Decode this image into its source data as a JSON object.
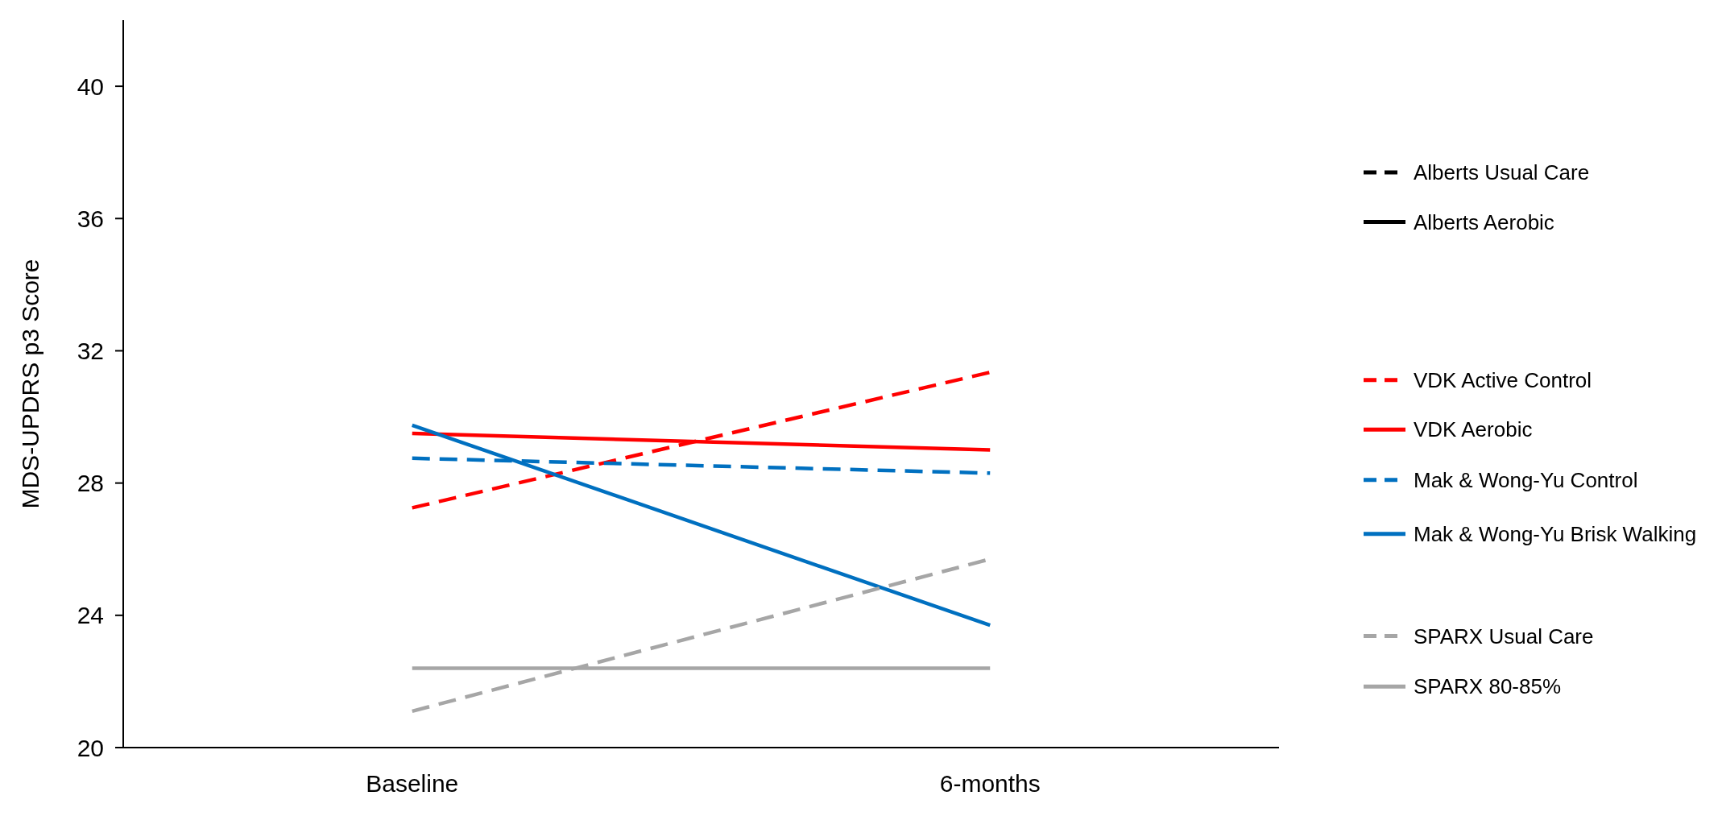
{
  "chart_data": {
    "type": "line",
    "ylabel": "MDS-UPDRS p3 Score",
    "categories": [
      "Baseline",
      "6-months"
    ],
    "ylim": [
      20,
      42
    ],
    "yticks": [
      20,
      24,
      28,
      32,
      36,
      40
    ],
    "legend": "right",
    "grid": false,
    "marker": "none",
    "series": [
      {
        "name": "Alberts Usual Care",
        "color": "#000000",
        "line_style": "dashed",
        "values": [
          null,
          null
        ]
      },
      {
        "name": "Alberts Aerobic",
        "color": "#000000",
        "line_style": "solid",
        "values": [
          null,
          null
        ]
      },
      {
        "name": "VDK Active Control",
        "color": "#ff0000",
        "line_style": "dashed",
        "values": [
          27.25,
          31.35
        ]
      },
      {
        "name": "VDK Aerobic",
        "color": "#ff0000",
        "line_style": "solid",
        "values": [
          29.5,
          29.0
        ]
      },
      {
        "name": "Mak & Wong-Yu Control",
        "color": "#0070c0",
        "line_style": "dashed",
        "values": [
          28.75,
          28.3
        ]
      },
      {
        "name": "Mak & Wong-Yu Brisk Walking",
        "color": "#0070c0",
        "line_style": "solid",
        "values": [
          29.75,
          23.7
        ]
      },
      {
        "name": "SPARX Usual Care",
        "color": "#a6a6a6",
        "line_style": "dashed",
        "values": [
          21.1,
          25.7
        ]
      },
      {
        "name": "SPARX 80-85%",
        "color": "#a6a6a6",
        "line_style": "solid",
        "values": [
          22.4,
          22.4
        ]
      }
    ]
  }
}
